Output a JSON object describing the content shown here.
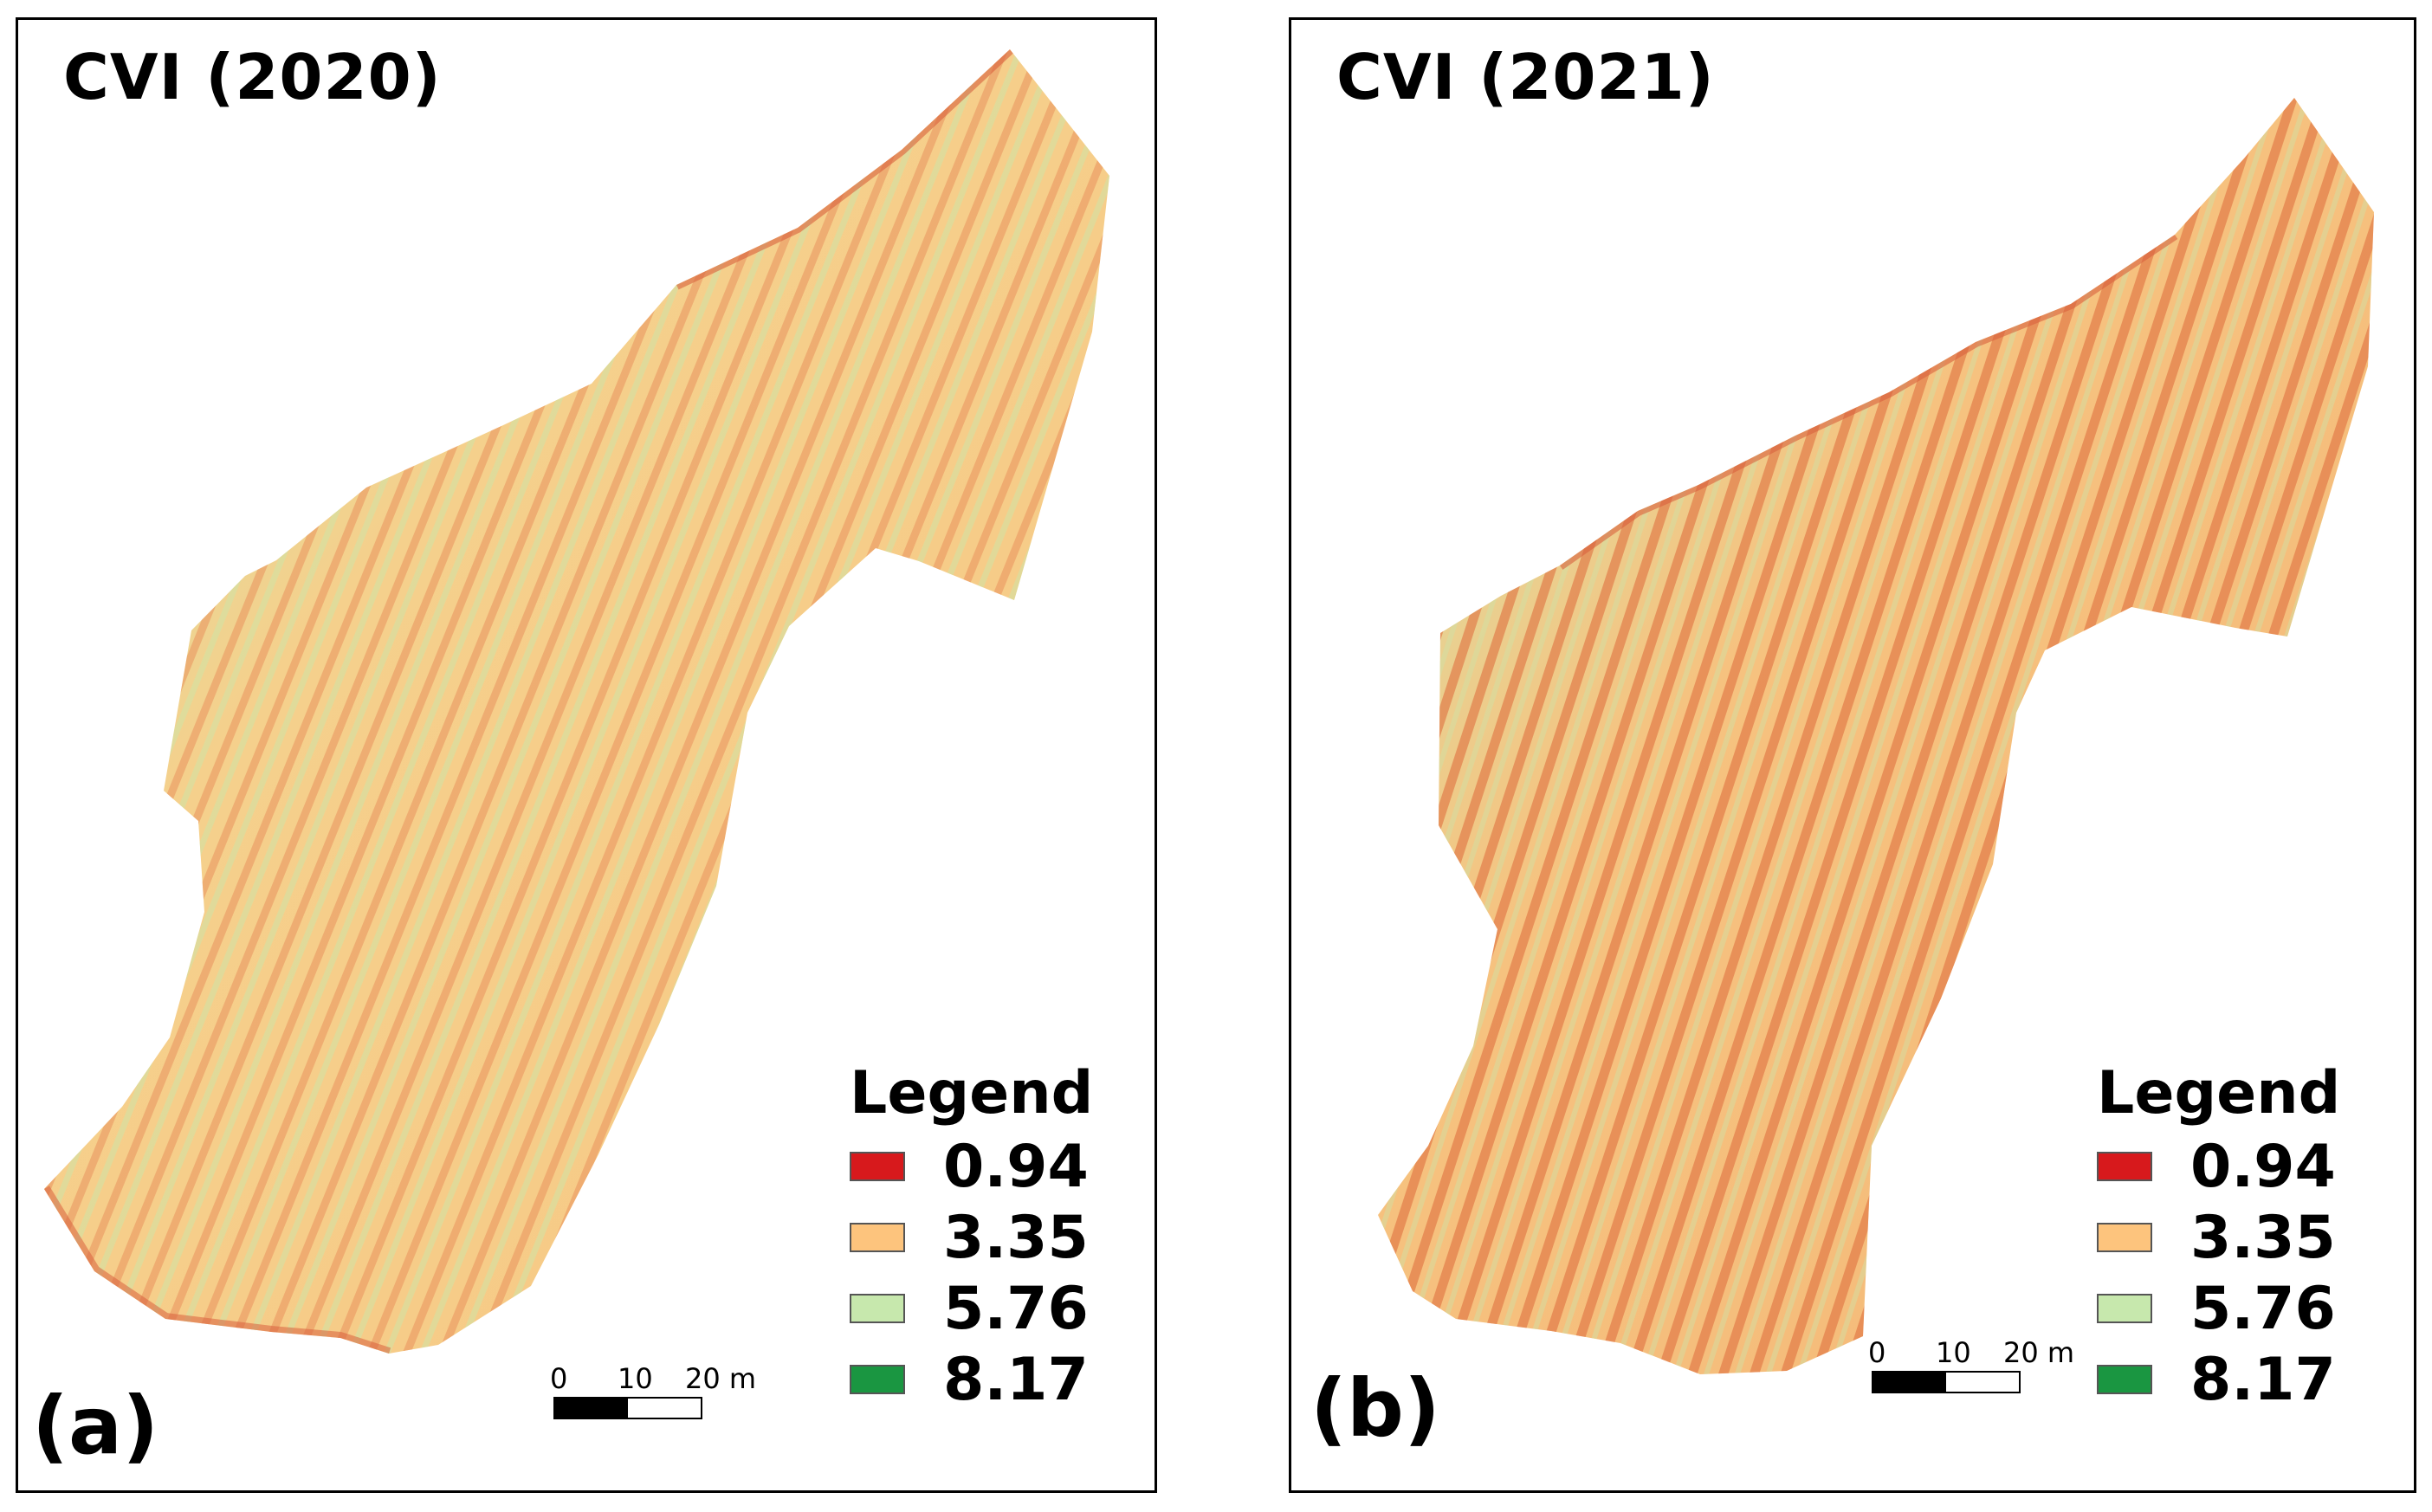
{
  "panels": [
    {
      "id": "a",
      "title": "CVI (2020)",
      "label": "(a)",
      "legend": {
        "title": "Legend",
        "items": [
          {
            "value": "0.94",
            "color": "#d7191c"
          },
          {
            "value": "3.35",
            "color": "#fdc47d"
          },
          {
            "value": "5.76",
            "color": "#c7e8ad"
          },
          {
            "value": "8.17",
            "color": "#1a9641"
          }
        ]
      },
      "scale": {
        "ticks": [
          "0",
          "10",
          "20 m"
        ]
      }
    },
    {
      "id": "b",
      "title": "CVI (2021)",
      "label": "(b)",
      "legend": {
        "title": "Legend",
        "items": [
          {
            "value": "0.94",
            "color": "#d7191c"
          },
          {
            "value": "3.35",
            "color": "#fdc47d"
          },
          {
            "value": "5.76",
            "color": "#c7e8ad"
          },
          {
            "value": "8.17",
            "color": "#1a9641"
          }
        ]
      },
      "scale": {
        "ticks": [
          "0",
          "10",
          "20 m"
        ]
      }
    }
  ]
}
